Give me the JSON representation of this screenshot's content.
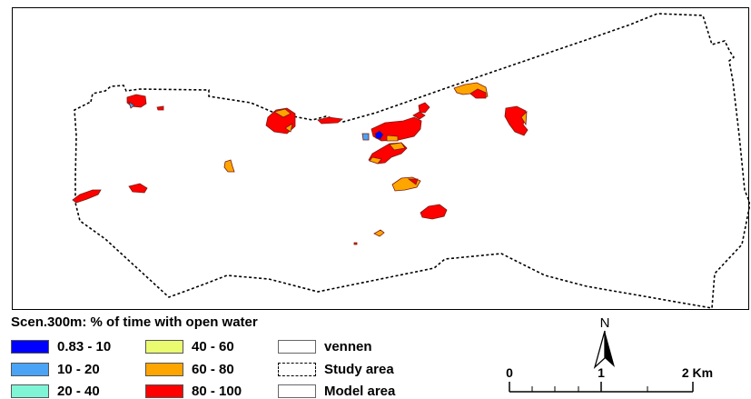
{
  "map": {
    "legend_title": "Scen.300m: % of time with open water",
    "classes": [
      {
        "label": "0.83 - 10",
        "color": "#0000ff"
      },
      {
        "label": "10 - 20",
        "color": "#4aa3f5"
      },
      {
        "label": "20 - 40",
        "color": "#7ff5d6"
      },
      {
        "label": "40 - 60",
        "color": "#eafb70"
      },
      {
        "label": "60 - 80",
        "color": "#ffa500"
      },
      {
        "label": "80 - 100",
        "color": "#ff0000"
      }
    ],
    "other_legend": [
      {
        "label": "vennen",
        "icon": "plain-box"
      },
      {
        "label": "Study area",
        "icon": "dashed-box"
      },
      {
        "label": "Model area",
        "icon": "plain-box"
      }
    ],
    "north_label": "N",
    "scale": {
      "ticks": [
        "0",
        "1",
        "2 Km"
      ]
    }
  }
}
